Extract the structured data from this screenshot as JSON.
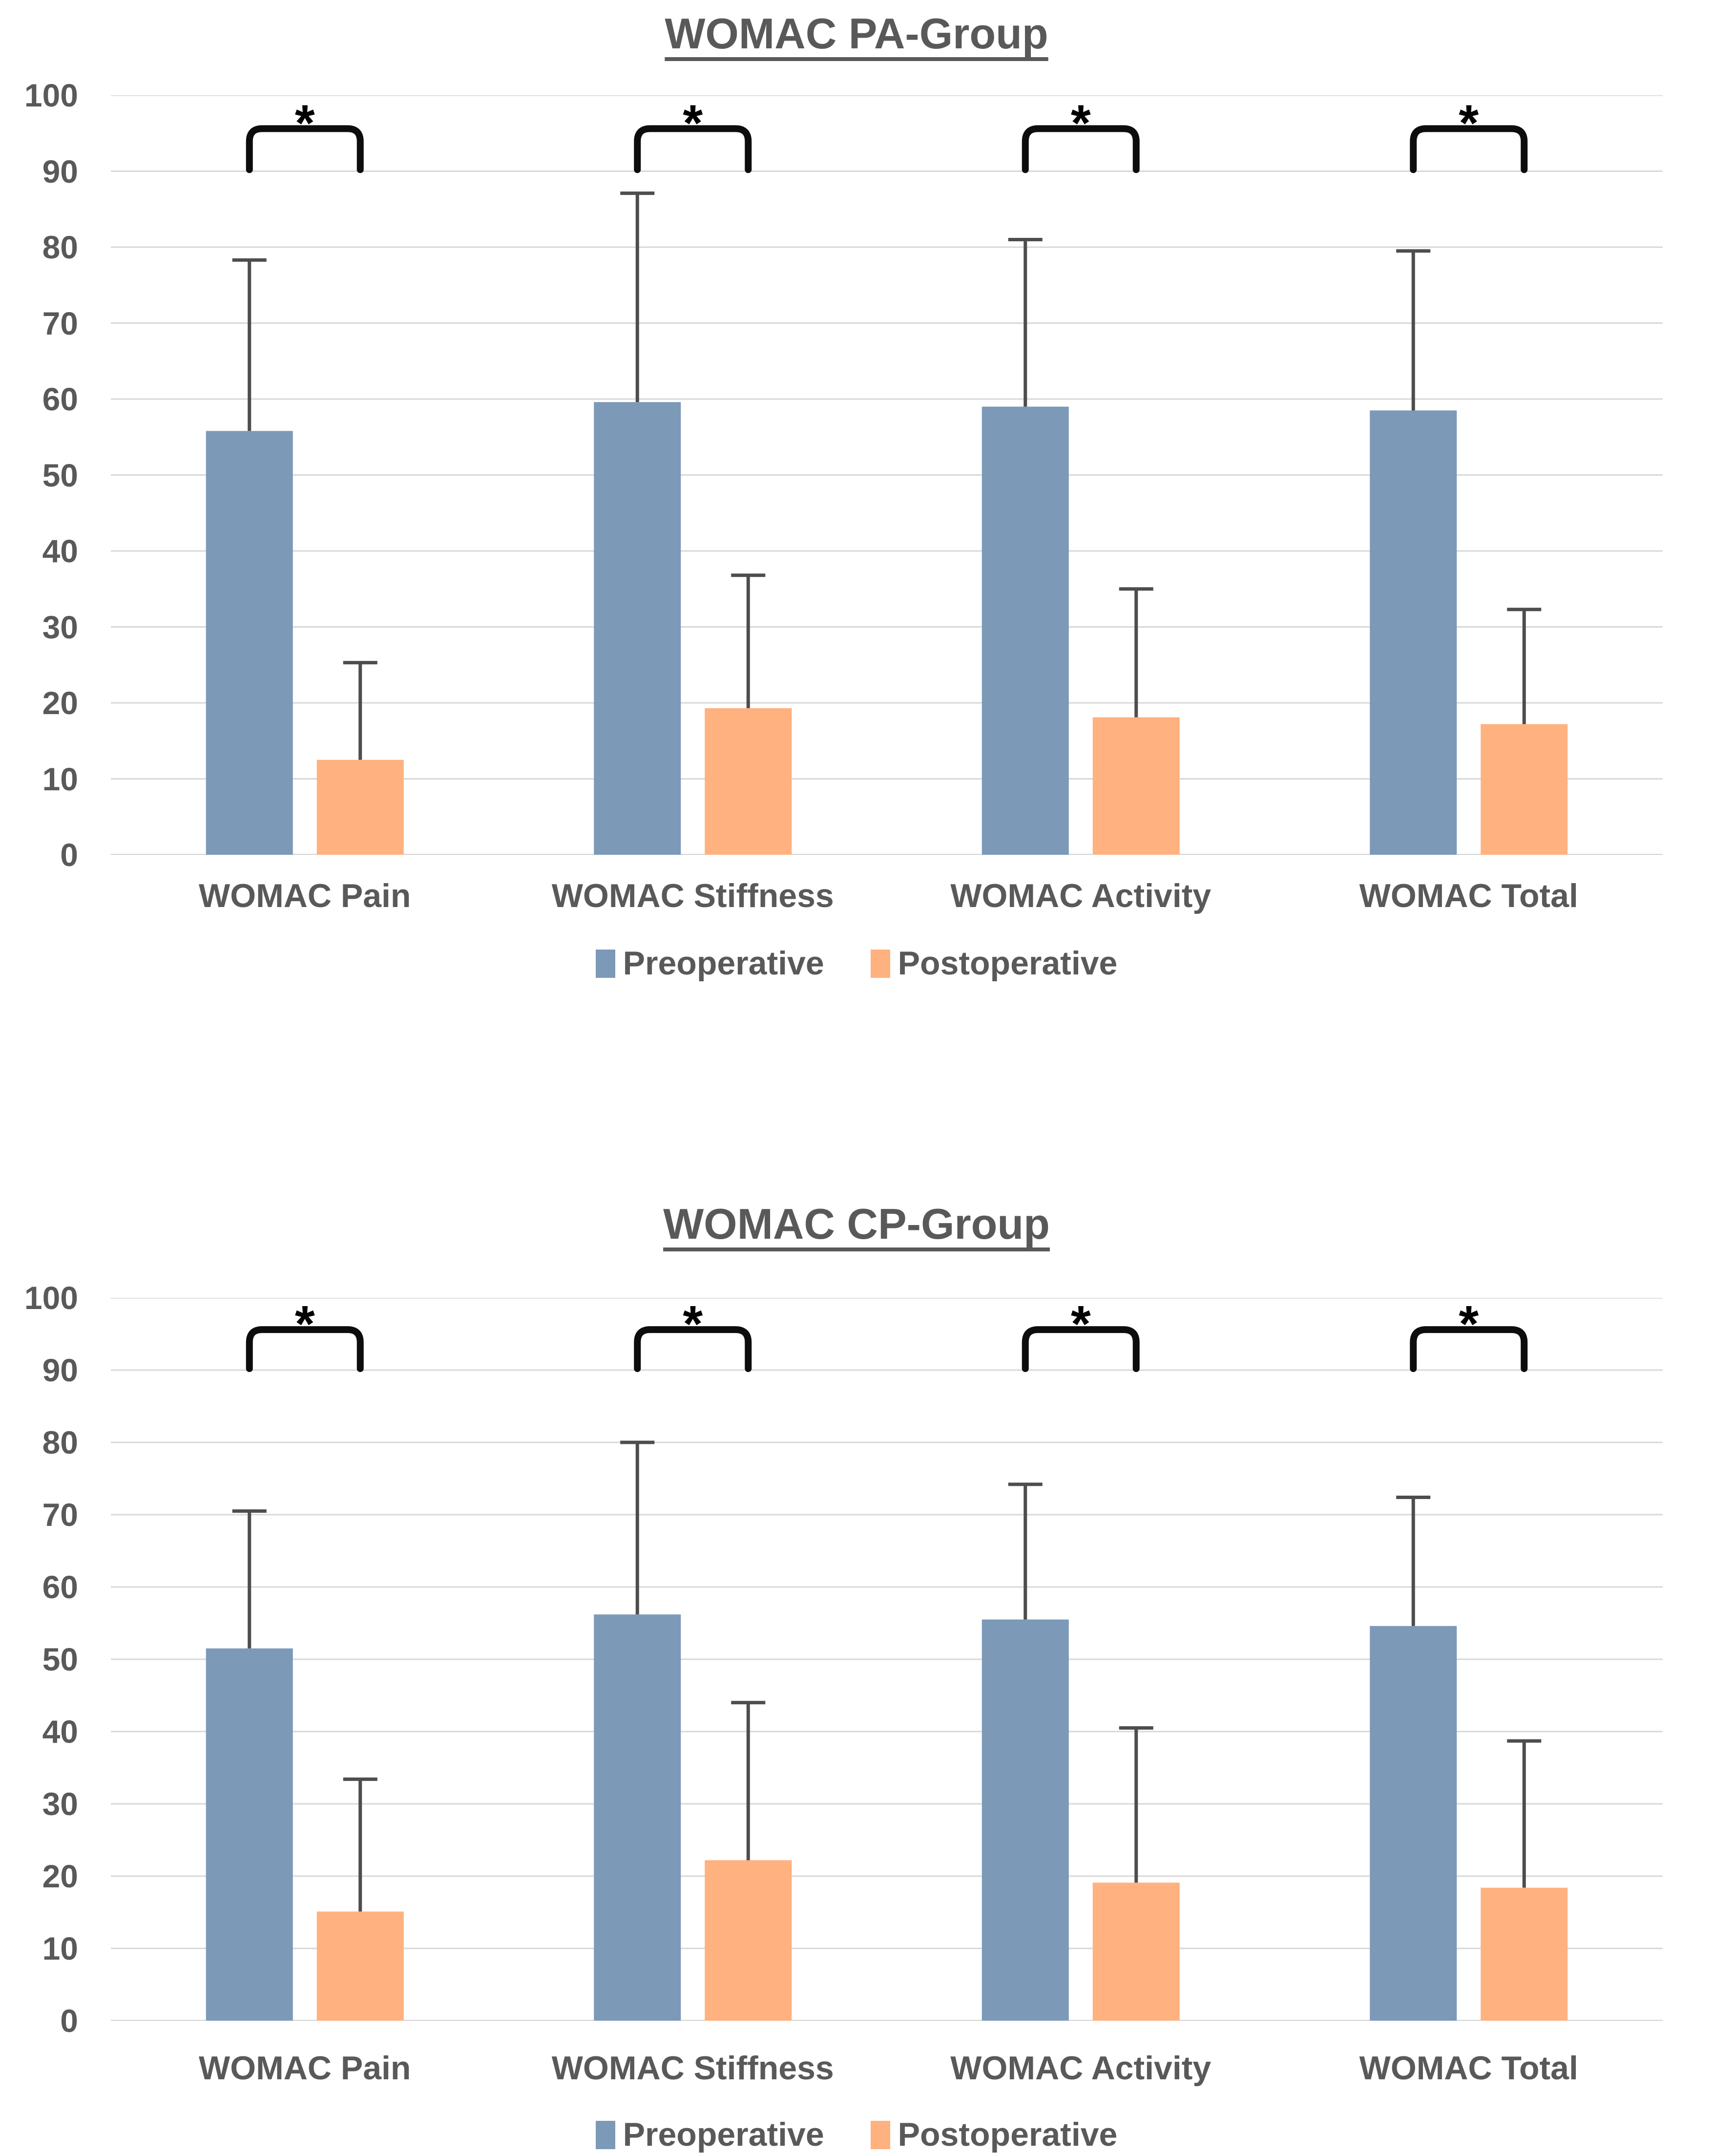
{
  "figure": {
    "background": "#ffffff",
    "text_color": "#595959",
    "gridline_color": "#D8D8D8",
    "axisline_color": "#C4C4C4",
    "errorbar_color": "#4D4D4D",
    "bracket_color": "#0D0D0D",
    "significance_marker": "*",
    "series_colors": {
      "preoperative": "#7D99B8",
      "postoperative": "#FFB17F"
    }
  },
  "chart_data": [
    {
      "type": "bar",
      "title": "WOMAC PA-Group",
      "categories": [
        "WOMAC Pain",
        "WOMAC Stiffness",
        "WOMAC Activity",
        "WOMAC Total"
      ],
      "series": [
        {
          "name": "Preoperative",
          "color": "#7D99B8",
          "values": [
            55.8,
            59.6,
            59.0,
            58.5
          ],
          "error_plus": [
            22.5,
            27.5,
            22.0,
            21.0
          ]
        },
        {
          "name": "Postoperative",
          "color": "#FFB17F",
          "values": [
            12.5,
            19.3,
            18.1,
            17.2
          ],
          "error_plus": [
            12.8,
            17.5,
            16.9,
            15.1
          ]
        }
      ],
      "significance": [
        "*",
        "*",
        "*",
        "*"
      ],
      "ylim": [
        0,
        100
      ],
      "yticks": [
        0,
        10,
        20,
        30,
        40,
        50,
        60,
        70,
        80,
        90,
        100
      ],
      "grid": true,
      "legend_position": "bottom"
    },
    {
      "type": "bar",
      "title": "WOMAC CP-Group",
      "categories": [
        "WOMAC Pain",
        "WOMAC Stiffness",
        "WOMAC Activity",
        "WOMAC Total"
      ],
      "series": [
        {
          "name": "Preoperative",
          "color": "#7D99B8",
          "values": [
            51.5,
            56.2,
            55.5,
            54.6
          ],
          "error_plus": [
            19.0,
            23.8,
            18.7,
            17.8
          ]
        },
        {
          "name": "Postoperative",
          "color": "#FFB17F",
          "values": [
            15.1,
            22.2,
            19.1,
            18.4
          ],
          "error_plus": [
            18.3,
            21.8,
            21.4,
            20.3
          ]
        }
      ],
      "significance": [
        "*",
        "*",
        "*",
        "*"
      ],
      "ylim": [
        0,
        100
      ],
      "yticks": [
        0,
        10,
        20,
        30,
        40,
        50,
        60,
        70,
        80,
        90,
        100
      ],
      "grid": true,
      "legend_position": "bottom"
    }
  ]
}
